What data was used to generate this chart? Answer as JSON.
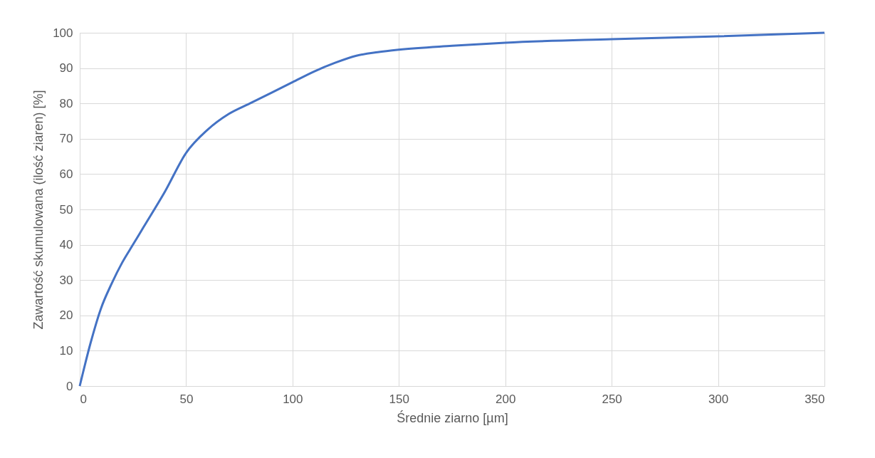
{
  "chart_data": {
    "type": "line",
    "xlabel": "Średnie ziarno [µm]",
    "ylabel": "Zawartość skumulowana (ilość ziaren) [%]",
    "x": [
      0,
      5,
      10,
      15,
      20,
      25,
      30,
      40,
      50,
      60,
      70,
      80,
      90,
      100,
      110,
      120,
      130,
      140,
      150,
      175,
      200,
      250,
      300,
      350
    ],
    "series": [
      {
        "color": "#4472c4",
        "values": [
          0,
          12,
          22,
          29,
          35,
          40,
          45,
          55,
          66,
          72.5,
          77,
          80,
          83,
          86,
          89,
          91.5,
          93.5,
          94.5,
          95.2,
          96.3,
          97.2,
          98.2,
          99,
          100
        ]
      }
    ],
    "xlim": [
      0,
      350
    ],
    "xticks": [
      0,
      50,
      100,
      150,
      200,
      250,
      300,
      350
    ],
    "ylim": [
      0,
      100
    ],
    "yticks": [
      0,
      10,
      20,
      30,
      40,
      50,
      60,
      70,
      80,
      90,
      100
    ],
    "grid": true,
    "marker": "none",
    "line_style": "solid"
  }
}
